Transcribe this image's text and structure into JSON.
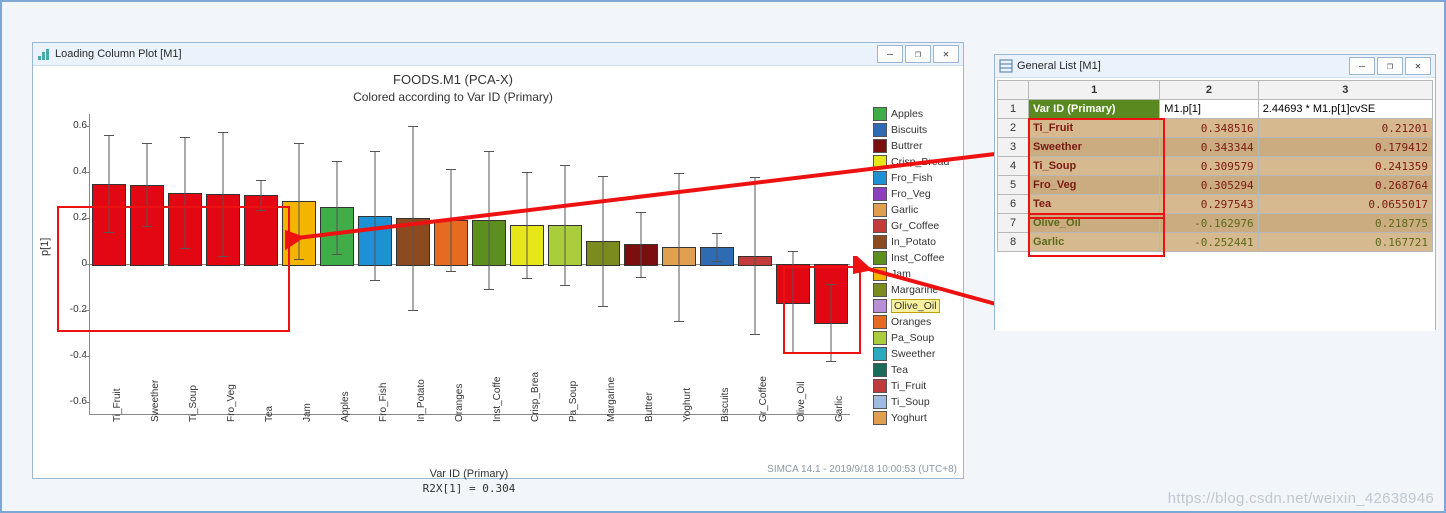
{
  "chart_window": {
    "title": "Loading Column Plot [M1]"
  },
  "table_window": {
    "title": "General List [M1]"
  },
  "chart": {
    "title": "FOODS.M1 (PCA-X)",
    "subtitle": "Colored according to Var ID (Primary)",
    "yaxis": "p[1]",
    "xaxis": "Var ID (Primary)",
    "r2x": "R2X[1] = 0.304",
    "ylim": [
      -0.65,
      0.65
    ],
    "yticks": [
      -0.6,
      -0.4,
      -0.2,
      0,
      0.2,
      0.4,
      0.6
    ],
    "footer": "SIMCA 14.1 - 2019/9/18 10:00:53 (UTC+8)",
    "bars": [
      {
        "label": "Ti_Fruit",
        "value": 0.348516,
        "err": 0.21201,
        "color": "#e30613"
      },
      {
        "label": "Sweether",
        "value": 0.343344,
        "err": 0.179412,
        "color": "#e30613"
      },
      {
        "label": "Ti_Soup",
        "value": 0.309579,
        "err": 0.241359,
        "color": "#e30613"
      },
      {
        "label": "Fro_Veg",
        "value": 0.305294,
        "err": 0.268764,
        "color": "#e30613"
      },
      {
        "label": "Tea",
        "value": 0.297543,
        "err": 0.0655017,
        "color": "#e30613"
      },
      {
        "label": "Jam",
        "value": 0.273,
        "err": 0.25,
        "color": "#f5b400"
      },
      {
        "label": "Apples",
        "value": 0.245,
        "err": 0.2,
        "color": "#3fae49"
      },
      {
        "label": "Fro_Fish",
        "value": 0.21,
        "err": 0.28,
        "color": "#1e90d4"
      },
      {
        "label": "In_Potato",
        "value": 0.2,
        "err": 0.4,
        "color": "#8b4a20"
      },
      {
        "label": "Oranges",
        "value": 0.19,
        "err": 0.22,
        "color": "#e66a1f"
      },
      {
        "label": "Inst_Coffe",
        "value": 0.19,
        "err": 0.3,
        "color": "#5d8f1f"
      },
      {
        "label": "Crisp_Brea",
        "value": 0.17,
        "err": 0.23,
        "color": "#e6e619"
      },
      {
        "label": "Pa_Soup",
        "value": 0.17,
        "err": 0.26,
        "color": "#aacd3b"
      },
      {
        "label": "Margarine",
        "value": 0.1,
        "err": 0.28,
        "color": "#7b8b1e"
      },
      {
        "label": "Buttrer",
        "value": 0.085,
        "err": 0.14,
        "color": "#7b0f0f"
      },
      {
        "label": "Yoghurt",
        "value": 0.075,
        "err": 0.32,
        "color": "#e0a050"
      },
      {
        "label": "Biscuits",
        "value": 0.075,
        "err": 0.06,
        "color": "#2f6bb3"
      },
      {
        "label": "Gr_Coffee",
        "value": 0.035,
        "err": 0.34,
        "color": "#c23a3a"
      },
      {
        "label": "Olive_Oil",
        "value": -0.162976,
        "err": 0.218775,
        "color": "#e30613"
      },
      {
        "label": "Garlic",
        "value": -0.252441,
        "err": 0.167721,
        "color": "#e30613"
      }
    ],
    "legend": [
      {
        "label": "Apples",
        "color": "#3fae49"
      },
      {
        "label": "Biscuits",
        "color": "#2f6bb3"
      },
      {
        "label": "Buttrer",
        "color": "#7b0f0f"
      },
      {
        "label": "Crisp_Bread",
        "color": "#e6e619"
      },
      {
        "label": "Fro_Fish",
        "color": "#1e90d4"
      },
      {
        "label": "Fro_Veg",
        "color": "#8d3fbf"
      },
      {
        "label": "Garlic",
        "color": "#e0a050"
      },
      {
        "label": "Gr_Coffee",
        "color": "#c23a3a"
      },
      {
        "label": "In_Potato",
        "color": "#8b4a20"
      },
      {
        "label": "Inst_Coffee",
        "color": "#5d8f1f"
      },
      {
        "label": "Jam",
        "color": "#f5b400"
      },
      {
        "label": "Margarine",
        "color": "#7b8b1e"
      },
      {
        "label": "Olive_Oil",
        "color": "#b88fd6",
        "hl": true
      },
      {
        "label": "Oranges",
        "color": "#e66a1f"
      },
      {
        "label": "Pa_Soup",
        "color": "#aacd3b"
      },
      {
        "label": "Sweether",
        "color": "#2aaabf"
      },
      {
        "label": "Tea",
        "color": "#1a6a5a"
      },
      {
        "label": "Ti_Fruit",
        "color": "#bf3a3a"
      },
      {
        "label": "Ti_Soup",
        "color": "#9fbbe0"
      },
      {
        "label": "Yoghurt",
        "color": "#e0a050"
      }
    ]
  },
  "table": {
    "columns": [
      "1",
      "2",
      "3"
    ],
    "col_labels": [
      "Var ID (Primary)",
      "M1.p[1]",
      "2.44693 * M1.p[1]cvSE"
    ],
    "rows": [
      {
        "n": "2",
        "id": "Ti_Fruit",
        "p": "0.348516",
        "c": "0.21201",
        "color": "#7a1a12"
      },
      {
        "n": "3",
        "id": "Sweether",
        "p": "0.343344",
        "c": "0.179412",
        "color": "#7a1a12"
      },
      {
        "n": "4",
        "id": "Ti_Soup",
        "p": "0.309579",
        "c": "0.241359",
        "color": "#7a1a12"
      },
      {
        "n": "5",
        "id": "Fro_Veg",
        "p": "0.305294",
        "c": "0.268764",
        "color": "#7a1a12"
      },
      {
        "n": "6",
        "id": "Tea",
        "p": "0.297543",
        "c": "0.0655017",
        "color": "#7a1a12"
      },
      {
        "n": "7",
        "id": "Olive_Oil",
        "p": "-0.162976",
        "c": "0.218775",
        "color": "#5a6a18"
      },
      {
        "n": "8",
        "id": "Garlic",
        "p": "-0.252441",
        "c": "0.167721",
        "color": "#5a6a18"
      }
    ]
  },
  "watermark": "https://blog.csdn.net/weixin_42638946",
  "win_buttons": {
    "min": "—",
    "max": "❐",
    "close": "✕"
  }
}
